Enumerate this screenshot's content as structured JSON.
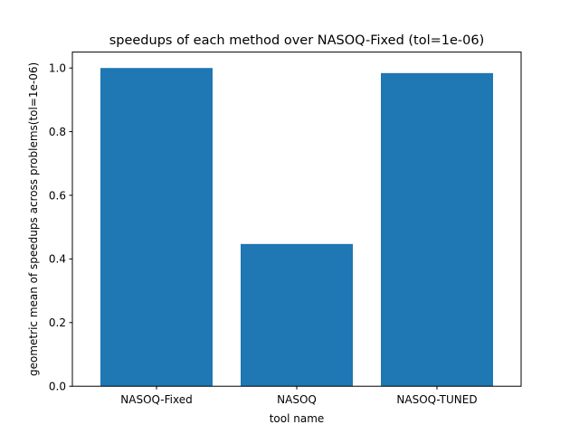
{
  "chart_data": {
    "type": "bar",
    "title": "speedups of each method over NASOQ-Fixed (tol=1e-06)",
    "xlabel": "tool name",
    "ylabel": "geometric mean of speedups across problems(tol=1e-06)",
    "categories": [
      "NASOQ-Fixed",
      "NASOQ",
      "NASOQ-TUNED"
    ],
    "values": [
      1.0,
      0.447,
      0.984
    ],
    "ylim": [
      0,
      1.05
    ],
    "yticks": [
      0.0,
      0.2,
      0.4,
      0.6,
      0.8,
      1.0
    ],
    "ytick_labels": [
      "0.0",
      "0.2",
      "0.4",
      "0.6",
      "0.8",
      "1.0"
    ],
    "bar_color": "#1f77b4",
    "grid": false,
    "legend": "none"
  }
}
